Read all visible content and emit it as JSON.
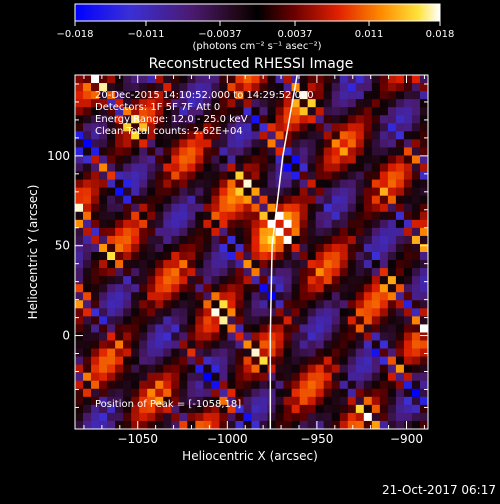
{
  "chart_data": {
    "type": "heatmap",
    "title": "Reconstructed RHESSI Image",
    "xlabel": "Heliocentric X (arcsec)",
    "ylabel": "Heliocentric Y (arcsec)",
    "xlim": [
      -1085,
      -888
    ],
    "ylim": [
      -52,
      145
    ],
    "x_ticks": [
      -1050,
      -1000,
      -950,
      -900
    ],
    "y_ticks": [
      0,
      50,
      100
    ],
    "x_tick_labels": [
      "−1050",
      "−1000",
      "−950",
      "−900"
    ],
    "y_tick_labels": [
      "0",
      "50",
      "100"
    ],
    "colorbar": {
      "min": -0.018,
      "max": 0.018,
      "ticks": [
        -0.018,
        -0.011,
        -0.0037,
        0.0037,
        0.011,
        0.018
      ],
      "tick_labels": [
        "−0.018",
        "−0.011",
        "−0.0037",
        "0.0037",
        "0.011",
        "0.018"
      ],
      "unit_label": "(photons cm⁻² s⁻¹ asec⁻²)"
    },
    "annotations": [
      "20-Dec-2015 14:10:52.000 to 14:29:52.000",
      "Detectors: 1F 5F 7F  Att 0",
      "Energy Range: 12.0 - 25.0 keV",
      "Clean     Total counts: 2.62E+04"
    ],
    "peak_label": "Position of Peak = [-1058,18]",
    "peak": [
      -1058,
      18
    ],
    "limb_curve": [
      [
        -961,
        145
      ],
      [
        -969,
        100
      ],
      [
        -975,
        50
      ],
      [
        -976,
        0
      ],
      [
        -976,
        -52
      ]
    ]
  },
  "footer": {
    "timestamp": "21-Oct-2017 06:17"
  }
}
